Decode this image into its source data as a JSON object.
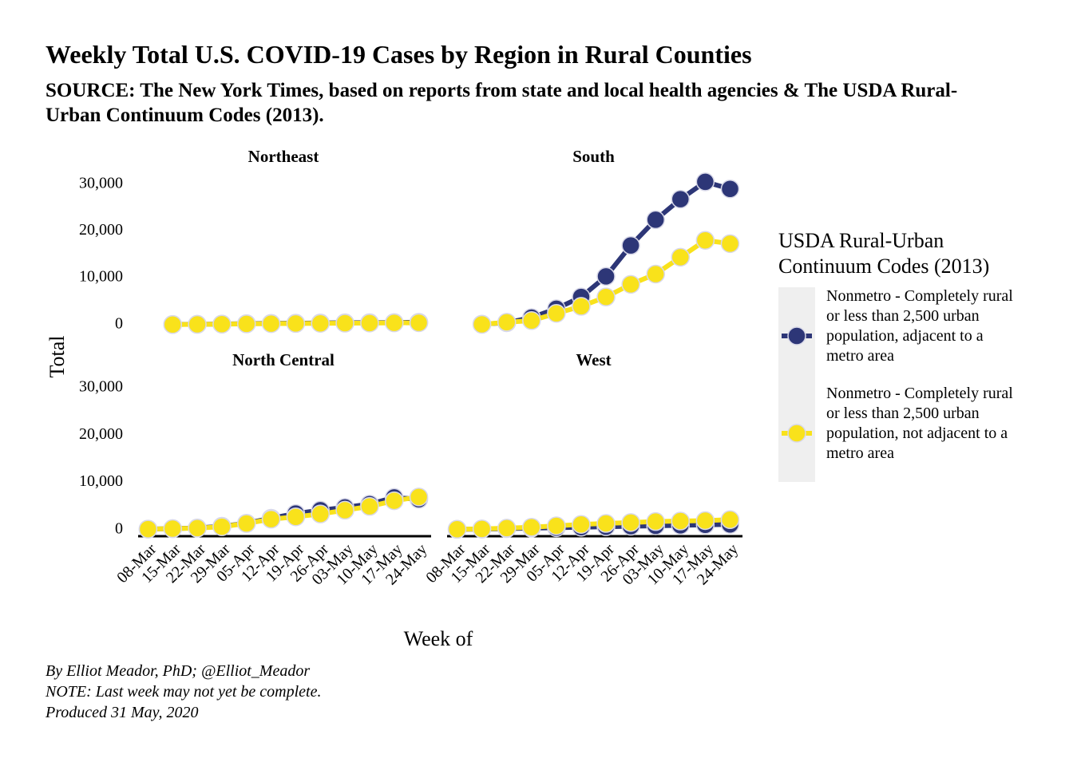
{
  "title": "Weekly Total U.S. COVID-19 Cases by Region in Rural Counties",
  "subtitle": "SOURCE: The New York Times, based on reports from state and local health agencies & The USDA Rural-Urban Continuum Codes (2013).",
  "caption": [
    "By Elliot Meador, PhD; @Elliot_Meador",
    "NOTE: Last week may not yet be complete.",
    "Produced 31 May, 2020"
  ],
  "y_label": "Total",
  "x_label": "Week of",
  "legend_title": "USDA Rural-Urban Continuum Codes (2013)",
  "chart_data": [
    {
      "type": "line",
      "title": "Northeast",
      "ylim": [
        -1400,
        32700
      ],
      "yticks": [
        0,
        {
          "value": 10000,
          "label": "10,000"
        },
        {
          "value": 20000,
          "label": "20,000"
        },
        {
          "value": 30000,
          "label": "30,000"
        }
      ],
      "series": [
        {
          "name": "Nonmetro - Completely rural or less than 2,500 urban population, adjacent to a metro area",
          "color": "#2d3677",
          "values": [
            null,
            20,
            60,
            120,
            200,
            260,
            300,
            340,
            380,
            410,
            440,
            500
          ]
        },
        {
          "name": "Nonmetro - Completely rural or less than 2,500 urban population, not adjacent to a metro area",
          "color": "#f9e21b",
          "values": [
            null,
            10,
            40,
            90,
            150,
            200,
            240,
            270,
            300,
            330,
            360,
            400
          ]
        }
      ]
    },
    {
      "type": "line",
      "title": "South",
      "ylim": [
        -1400,
        32700
      ],
      "series": [
        {
          "color": "#2d3677",
          "values": [
            null,
            100,
            400,
            1500,
            3400,
            5900,
            10300,
            16900,
            22400,
            26800,
            30500,
            29000
          ]
        },
        {
          "color": "#f9e21b",
          "values": [
            null,
            50,
            500,
            850,
            2400,
            3900,
            5900,
            8600,
            10800,
            14400,
            18000,
            17300
          ]
        }
      ]
    },
    {
      "type": "line",
      "title": "North Central",
      "ylim": [
        -1400,
        32700
      ],
      "yticks": [
        0,
        {
          "value": 10000,
          "label": "10,000"
        },
        {
          "value": 20000,
          "label": "20,000"
        },
        {
          "value": 30000,
          "label": "30,000"
        }
      ],
      "categories": [
        "08-Mar",
        "15-Mar",
        "22-Mar",
        "29-Mar",
        "05-Apr",
        "12-Apr",
        "19-Apr",
        "26-Apr",
        "03-May",
        "10-May",
        "17-May",
        "24-May"
      ],
      "series": [
        {
          "color": "#2d3677",
          "values": [
            100,
            200,
            350,
            700,
            1350,
            2400,
            3400,
            4100,
            4700,
            5400,
            6800,
            6400
          ]
        },
        {
          "color": "#f9e21b",
          "values": [
            100,
            200,
            300,
            600,
            1300,
            2200,
            2700,
            3300,
            4100,
            4900,
            6100,
            6900
          ]
        }
      ]
    },
    {
      "type": "line",
      "title": "West",
      "ylim": [
        -1400,
        32700
      ],
      "categories": [
        "08-Mar",
        "15-Mar",
        "22-Mar",
        "29-Mar",
        "05-Apr",
        "12-Apr",
        "19-Apr",
        "26-Apr",
        "03-May",
        "10-May",
        "17-May",
        "24-May"
      ],
      "series": [
        {
          "color": "#2d3677",
          "values": [
            50,
            100,
            200,
            300,
            400,
            500,
            600,
            700,
            800,
            900,
            1000,
            1100
          ]
        },
        {
          "color": "#f9e21b",
          "values": [
            80,
            150,
            300,
            500,
            800,
            1100,
            1300,
            1500,
            1700,
            1800,
            1900,
            2100
          ]
        }
      ]
    }
  ]
}
